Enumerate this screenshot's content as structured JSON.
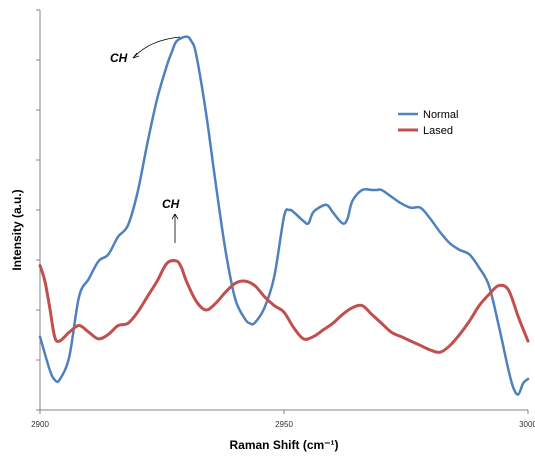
{
  "chart_data": {
    "type": "line",
    "xlabel": "Raman Shift (cm⁻¹)",
    "ylabel": "Intensity (a.u.)",
    "xlim": [
      2900,
      3000
    ],
    "x_ticks": [
      2900,
      2950,
      3000
    ],
    "y_tick_count": 8,
    "grid": false,
    "legend_position": "right",
    "series": [
      {
        "name": "Normal",
        "color": "#4f81bd",
        "x": [
          2900,
          2902,
          2903,
          2904,
          2906,
          2908,
          2910,
          2912,
          2914,
          2916,
          2918,
          2920,
          2922,
          2924,
          2926,
          2927,
          2928,
          2930,
          2931,
          2932,
          2934,
          2936,
          2938,
          2940,
          2942,
          2943,
          2944,
          2946,
          2948,
          2950,
          2951,
          2952,
          2954,
          2955,
          2956,
          2958,
          2959,
          2960,
          2962,
          2963,
          2964,
          2966,
          2968,
          2969,
          2970,
          2972,
          2974,
          2976,
          2978,
          2980,
          2982,
          2984,
          2986,
          2988,
          2990,
          2992,
          2994,
          2996,
          2997,
          2998,
          2999,
          3000
        ],
        "y": [
          1.65,
          0.9,
          0.68,
          0.68,
          1.2,
          2.55,
          2.95,
          3.35,
          3.5,
          3.9,
          4.15,
          4.9,
          6.0,
          7.0,
          7.75,
          8.05,
          8.3,
          8.4,
          8.3,
          8.0,
          6.7,
          5.1,
          3.6,
          2.5,
          2.05,
          1.95,
          1.96,
          2.3,
          3.0,
          4.35,
          4.5,
          4.45,
          4.25,
          4.2,
          4.45,
          4.6,
          4.6,
          4.45,
          4.2,
          4.3,
          4.7,
          4.95,
          4.95,
          4.95,
          4.95,
          4.8,
          4.65,
          4.55,
          4.55,
          4.3,
          4.0,
          3.75,
          3.6,
          3.5,
          3.2,
          2.8,
          1.9,
          0.9,
          0.5,
          0.35,
          0.6,
          0.7
        ]
      },
      {
        "name": "Lased",
        "color": "#c0504d",
        "x": [
          2900,
          2901,
          2902,
          2903,
          2904,
          2906,
          2908,
          2910,
          2912,
          2914,
          2916,
          2918,
          2920,
          2922,
          2924,
          2926,
          2928,
          2929,
          2930,
          2932,
          2934,
          2936,
          2938,
          2940,
          2942,
          2944,
          2946,
          2948,
          2950,
          2952,
          2954,
          2956,
          2958,
          2960,
          2962,
          2964,
          2966,
          2968,
          2970,
          2972,
          2974,
          2976,
          2978,
          2980,
          2982,
          2984,
          2986,
          2988,
          2990,
          2992,
          2994,
          2996,
          2998,
          3000
        ],
        "y": [
          3.25,
          2.9,
          2.3,
          1.65,
          1.55,
          1.75,
          1.9,
          1.75,
          1.6,
          1.7,
          1.9,
          1.95,
          2.2,
          2.55,
          2.9,
          3.3,
          3.35,
          3.2,
          2.9,
          2.45,
          2.25,
          2.4,
          2.65,
          2.85,
          2.9,
          2.8,
          2.55,
          2.35,
          2.2,
          1.85,
          1.6,
          1.65,
          1.8,
          1.95,
          2.15,
          2.3,
          2.35,
          2.15,
          1.95,
          1.75,
          1.65,
          1.55,
          1.45,
          1.35,
          1.3,
          1.45,
          1.7,
          2.0,
          2.35,
          2.6,
          2.8,
          2.7,
          2.1,
          1.55
        ]
      }
    ],
    "annotations": [
      {
        "text": "CH",
        "series": "Normal",
        "x": 2930,
        "y": 8.4
      },
      {
        "text": "CH",
        "series": "Lased",
        "x": 2928,
        "y": 3.35
      }
    ]
  }
}
